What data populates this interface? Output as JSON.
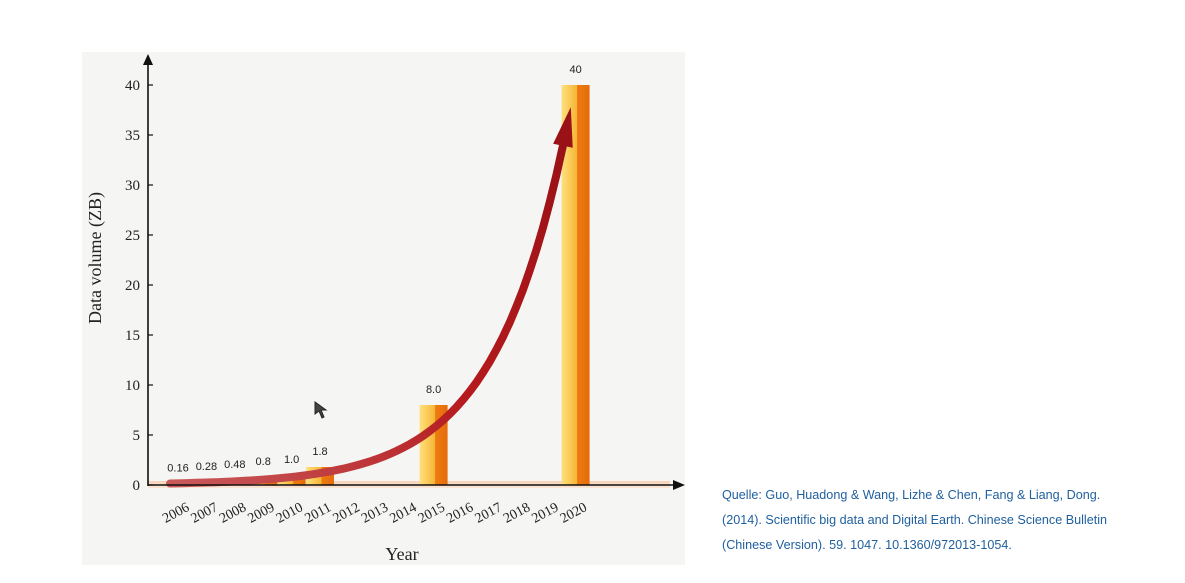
{
  "chart_data": {
    "type": "bar",
    "title": "",
    "xlabel": "Year",
    "ylabel": "Data volume (ZB)",
    "ylim": [
      0,
      40
    ],
    "yticks": [
      0,
      5,
      10,
      15,
      20,
      25,
      30,
      35,
      40
    ],
    "categories": [
      "2006",
      "2007",
      "2008",
      "2009",
      "2010",
      "2011",
      "2012",
      "2013",
      "2014",
      "2015",
      "2016",
      "2017",
      "2018",
      "2019",
      "2020"
    ],
    "values": [
      0.16,
      0.28,
      0.48,
      0.8,
      1.0,
      1.8,
      null,
      null,
      null,
      8.0,
      null,
      null,
      null,
      null,
      40
    ],
    "data_labels": [
      "0.16",
      "0.28",
      "0.48",
      "0.8",
      "1.0",
      "1.8",
      "",
      "",
      "",
      "8.0",
      "",
      "",
      "",
      "",
      "40"
    ],
    "trend_arrow": "exponential growth arrow from 2006 to 2020",
    "colors": {
      "bar_light": "#fbd46a",
      "bar_dark": "#ee7c12",
      "arrow": "#b51a1e",
      "base_band": "#f6d3ba"
    }
  },
  "source_note": {
    "line1": "Quelle: Guo, Huadong & Wang, Lizhe & Chen, Fang & Liang, Dong.",
    "line2": "(2014). Scientific big data and Digital Earth. Chinese Science Bulletin",
    "line3": "(Chinese Version). 59. 1047. 10.1360/972013-1054."
  },
  "cursor": {
    "icon": "mouse-pointer-icon"
  }
}
